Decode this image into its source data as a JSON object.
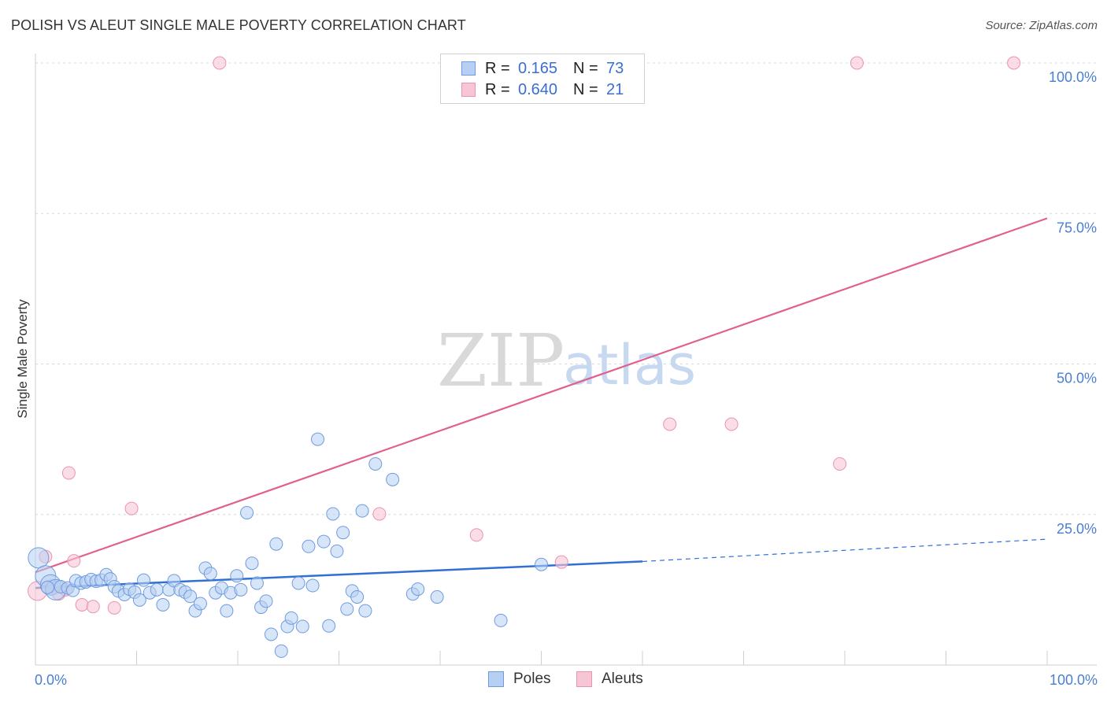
{
  "title": "POLISH VS ALEUT SINGLE MALE POVERTY CORRELATION CHART",
  "source": "Source: ZipAtlas.com",
  "watermark": {
    "zip": "ZIP",
    "atlas": "atlas"
  },
  "legend": {
    "rows": [
      {
        "r_label": "R =",
        "r_value": "0.165",
        "n_label": "N =",
        "n_value": "73"
      },
      {
        "r_label": "R =",
        "r_value": "0.640",
        "n_label": "N =",
        "n_value": "21"
      }
    ]
  },
  "bottom_legend": {
    "poles": "Poles",
    "aleuts": "Aleuts"
  },
  "colors": {
    "poles_fill": "#b7cff3",
    "poles_stroke": "#6f9be0",
    "poles_line": "#2f6fd6",
    "aleuts_fill": "#f7c6d5",
    "aleuts_stroke": "#ec93b1",
    "aleuts_line": "#e0608e",
    "axis_text": "#4a7fd0",
    "grid": "#d8d8d8"
  },
  "chart_data": {
    "type": "scatter",
    "title": "POLISH VS ALEUT SINGLE MALE POVERTY CORRELATION CHART",
    "xlabel": "",
    "ylabel": "Single Male Poverty",
    "xlim": [
      0,
      100
    ],
    "ylim": [
      0,
      100
    ],
    "x_tick_labels": {
      "left": "0.0%",
      "right": "100.0%"
    },
    "y_ticks": [
      25,
      50,
      75,
      100
    ],
    "y_tick_labels": [
      "25.0%",
      "50.0%",
      "75.0%",
      "100.0%"
    ],
    "grid": "horizontal-dashed",
    "series": [
      {
        "name": "Poles",
        "R": 0.165,
        "N": 73,
        "trend": {
          "x0": 0,
          "y0": 12.8,
          "x1": 60,
          "y1": 17.2,
          "dashed_to_x": 100,
          "dashed_y": 20.9
        },
        "points": [
          {
            "x": 0.3,
            "y": 17.8,
            "big": true
          },
          {
            "x": 1.0,
            "y": 14.8,
            "big": true
          },
          {
            "x": 1.5,
            "y": 13.3,
            "big": true
          },
          {
            "x": 2.0,
            "y": 12.5,
            "big": true
          },
          {
            "x": 2.5,
            "y": 13.0
          },
          {
            "x": 3.2,
            "y": 12.8
          },
          {
            "x": 3.7,
            "y": 12.4
          },
          {
            "x": 4.0,
            "y": 14.0
          },
          {
            "x": 4.5,
            "y": 13.6
          },
          {
            "x": 5.0,
            "y": 13.8
          },
          {
            "x": 5.5,
            "y": 14.2
          },
          {
            "x": 6.0,
            "y": 13.9
          },
          {
            "x": 6.5,
            "y": 14.1
          },
          {
            "x": 7.0,
            "y": 15.0
          },
          {
            "x": 7.4,
            "y": 14.3
          },
          {
            "x": 7.8,
            "y": 13.0
          },
          {
            "x": 8.2,
            "y": 12.3
          },
          {
            "x": 8.8,
            "y": 11.7
          },
          {
            "x": 9.3,
            "y": 12.6
          },
          {
            "x": 9.8,
            "y": 12.1
          },
          {
            "x": 10.3,
            "y": 10.8
          },
          {
            "x": 10.7,
            "y": 14.1
          },
          {
            "x": 11.3,
            "y": 12.0
          },
          {
            "x": 12.0,
            "y": 12.5
          },
          {
            "x": 12.6,
            "y": 10.0
          },
          {
            "x": 13.2,
            "y": 12.5
          },
          {
            "x": 13.7,
            "y": 14.0
          },
          {
            "x": 14.3,
            "y": 12.5
          },
          {
            "x": 14.8,
            "y": 12.1
          },
          {
            "x": 15.3,
            "y": 11.4
          },
          {
            "x": 15.8,
            "y": 9.0
          },
          {
            "x": 16.3,
            "y": 10.2
          },
          {
            "x": 16.8,
            "y": 16.1
          },
          {
            "x": 17.3,
            "y": 15.2
          },
          {
            "x": 17.8,
            "y": 12.0
          },
          {
            "x": 18.4,
            "y": 12.8
          },
          {
            "x": 18.9,
            "y": 9.0
          },
          {
            "x": 19.3,
            "y": 12.0
          },
          {
            "x": 19.9,
            "y": 14.8
          },
          {
            "x": 20.3,
            "y": 12.5
          },
          {
            "x": 20.9,
            "y": 25.3
          },
          {
            "x": 21.4,
            "y": 16.9
          },
          {
            "x": 21.9,
            "y": 13.6
          },
          {
            "x": 22.3,
            "y": 9.6
          },
          {
            "x": 22.8,
            "y": 10.6
          },
          {
            "x": 23.3,
            "y": 5.1
          },
          {
            "x": 23.8,
            "y": 20.1
          },
          {
            "x": 24.3,
            "y": 2.3
          },
          {
            "x": 24.9,
            "y": 6.4
          },
          {
            "x": 25.3,
            "y": 7.8
          },
          {
            "x": 26.0,
            "y": 13.6
          },
          {
            "x": 26.4,
            "y": 6.4
          },
          {
            "x": 27.0,
            "y": 19.7
          },
          {
            "x": 27.4,
            "y": 13.2
          },
          {
            "x": 27.9,
            "y": 37.5
          },
          {
            "x": 28.5,
            "y": 20.5
          },
          {
            "x": 29.0,
            "y": 6.5
          },
          {
            "x": 29.4,
            "y": 25.1
          },
          {
            "x": 29.8,
            "y": 18.9
          },
          {
            "x": 30.4,
            "y": 22.0
          },
          {
            "x": 30.8,
            "y": 9.3
          },
          {
            "x": 31.3,
            "y": 12.3
          },
          {
            "x": 31.8,
            "y": 11.3
          },
          {
            "x": 32.3,
            "y": 25.6
          },
          {
            "x": 32.6,
            "y": 9.0
          },
          {
            "x": 33.6,
            "y": 33.4
          },
          {
            "x": 35.3,
            "y": 30.8
          },
          {
            "x": 37.3,
            "y": 11.8
          },
          {
            "x": 37.8,
            "y": 12.6
          },
          {
            "x": 39.7,
            "y": 11.3
          },
          {
            "x": 46.0,
            "y": 7.4
          },
          {
            "x": 50.0,
            "y": 16.7
          },
          {
            "x": 1.2,
            "y": 12.9
          }
        ]
      },
      {
        "name": "Aleuts",
        "R": 0.64,
        "N": 21,
        "trend": {
          "x0": 0,
          "y0": 15.4,
          "x1": 100,
          "y1": 74.2
        },
        "points": [
          {
            "x": 0.2,
            "y": 12.3,
            "big": true
          },
          {
            "x": 1.0,
            "y": 18.0
          },
          {
            "x": 1.8,
            "y": 13.0
          },
          {
            "x": 2.3,
            "y": 11.8
          },
          {
            "x": 3.0,
            "y": 12.5
          },
          {
            "x": 3.3,
            "y": 31.9
          },
          {
            "x": 3.8,
            "y": 17.3
          },
          {
            "x": 4.6,
            "y": 10.0
          },
          {
            "x": 5.7,
            "y": 9.7
          },
          {
            "x": 7.8,
            "y": 9.5
          },
          {
            "x": 9.5,
            "y": 26.0
          },
          {
            "x": 18.2,
            "y": 100.0
          },
          {
            "x": 34.0,
            "y": 25.1
          },
          {
            "x": 43.6,
            "y": 21.6
          },
          {
            "x": 52.0,
            "y": 17.1
          },
          {
            "x": 62.7,
            "y": 40.0
          },
          {
            "x": 68.8,
            "y": 40.0
          },
          {
            "x": 79.5,
            "y": 33.4
          },
          {
            "x": 81.2,
            "y": 100.0
          },
          {
            "x": 96.7,
            "y": 100.0
          },
          {
            "x": 1.5,
            "y": 13.1
          }
        ]
      }
    ]
  }
}
